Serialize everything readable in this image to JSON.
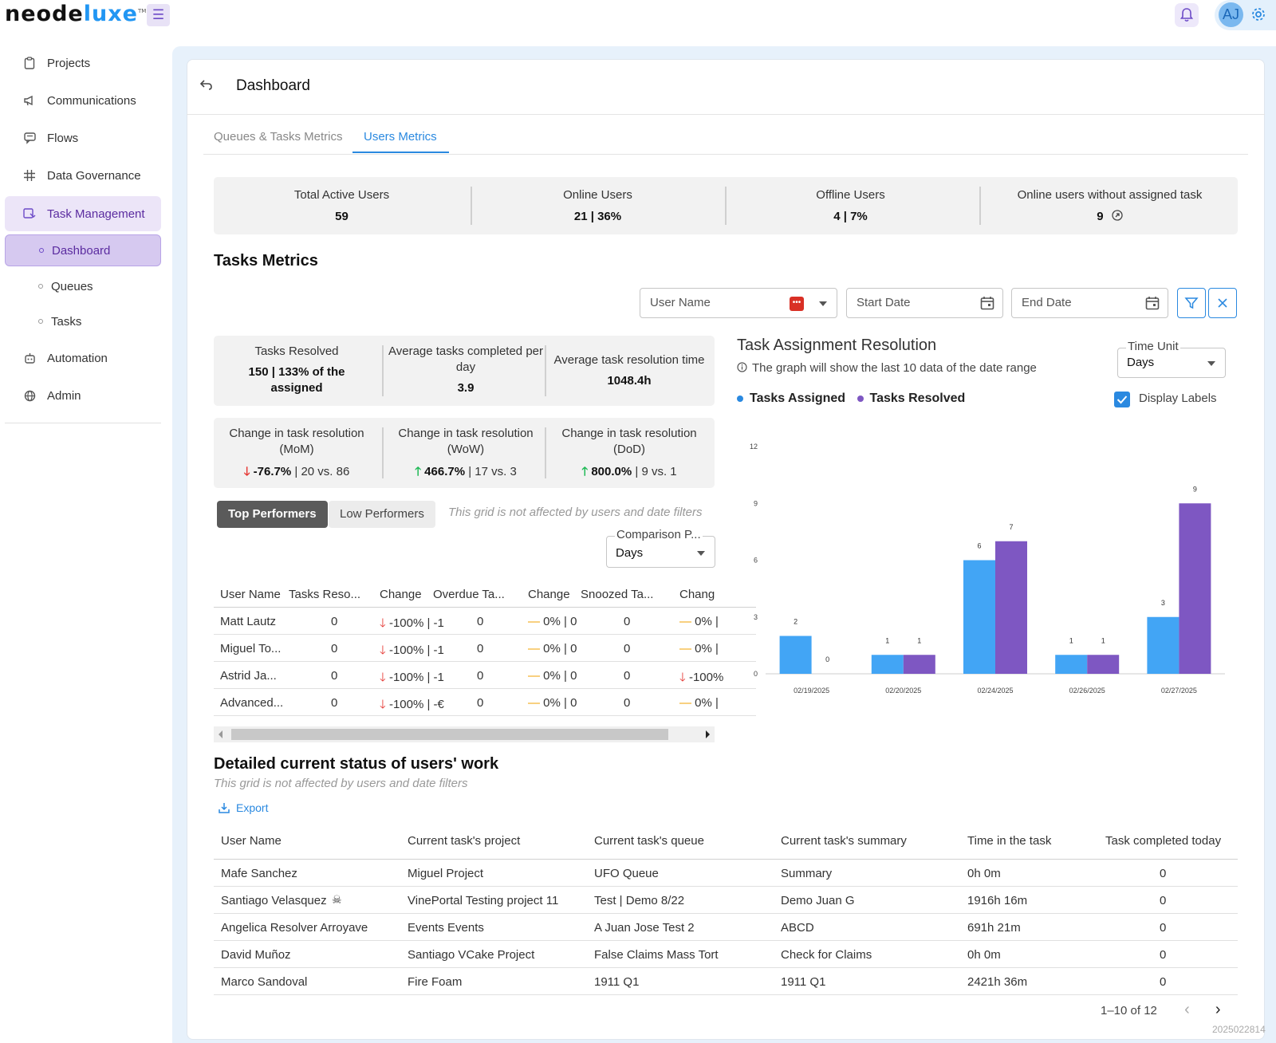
{
  "brand": {
    "logo_a": "neode",
    "logo_b": "luxe",
    "tm": "TM"
  },
  "topbar": {
    "avatar_initials": "AJ"
  },
  "sidebar": {
    "items": [
      {
        "label": "Projects",
        "icon": "clipboard-icon"
      },
      {
        "label": "Communications",
        "icon": "megaphone-icon"
      },
      {
        "label": "Flows",
        "icon": "message-icon"
      },
      {
        "label": "Data Governance",
        "icon": "grid-icon"
      },
      {
        "label": "Task Management",
        "icon": "task-icon"
      },
      {
        "label": "Automation",
        "icon": "robot-icon"
      },
      {
        "label": "Admin",
        "icon": "globe-icon"
      }
    ],
    "sub_items": [
      "Dashboard",
      "Queues",
      "Tasks"
    ]
  },
  "header": {
    "title": "Dashboard"
  },
  "tabs": [
    "Queues & Tasks Metrics",
    "Users Metrics"
  ],
  "summary": [
    {
      "label": "Total Active Users",
      "value": "59"
    },
    {
      "label": "Online Users",
      "value": "21 | 36%"
    },
    {
      "label": "Offline Users",
      "value": "4 | 7%"
    },
    {
      "label": "Online users without assigned task",
      "value": "9"
    }
  ],
  "tasks_metrics": {
    "title": "Tasks Metrics",
    "filters": {
      "user_name": "User Name",
      "start_date": "Start Date",
      "end_date": "End Date"
    },
    "box1": [
      {
        "label": "Tasks Resolved",
        "value_a": "150 | 133% of the",
        "value_b": "assigned"
      },
      {
        "label_a": "Average tasks completed per",
        "label_b": "day",
        "value": "3.9"
      },
      {
        "label": "Average task resolution time",
        "value": "1048.4h"
      }
    ],
    "box2": [
      {
        "label_a": "Change in task resolution",
        "label_b": "(MoM)",
        "pct": "-76.7%",
        "cmp": "20 vs. 86",
        "dir": "down"
      },
      {
        "label_a": "Change in task resolution",
        "label_b": "(WoW)",
        "pct": "466.7%",
        "cmp": "17 vs. 3",
        "dir": "up"
      },
      {
        "label_a": "Change in task resolution",
        "label_b": "(DoD)",
        "pct": "800.0%",
        "cmp": "9 vs. 1",
        "dir": "up"
      }
    ],
    "performers": {
      "top_label": "Top Performers",
      "low_label": "Low Performers",
      "note": "This grid is not affected by users and date filters",
      "comparison_label": "Comparison P...",
      "comparison_value": "Days",
      "columns": [
        "User Name",
        "Tasks Reso...",
        "Change",
        "Overdue Ta...",
        "Change",
        "Snoozed Ta...",
        "Chang"
      ],
      "rows": [
        [
          "Matt Lautz",
          "0",
          "-100% | -1",
          "0",
          "0% | 0",
          "0",
          "0% |"
        ],
        [
          "Miguel To...",
          "0",
          "-100% | -1",
          "0",
          "0% | 0",
          "0",
          "0% |"
        ],
        [
          "Astrid Ja...",
          "0",
          "-100% | -1",
          "0",
          "0% | 0",
          "0",
          "-100%"
        ],
        [
          "Advanced...",
          "0",
          "-100% | -€",
          "0",
          "0% | 0",
          "0",
          "0% |"
        ]
      ],
      "row_dirs": [
        [
          "down",
          "flat",
          "flat"
        ],
        [
          "down",
          "flat",
          "flat"
        ],
        [
          "down",
          "flat",
          "down"
        ],
        [
          "down",
          "flat",
          "flat"
        ]
      ]
    }
  },
  "chart_section": {
    "title": "Task Assignment Resolution",
    "note": "The graph will show the last 10 data of the date range",
    "time_unit_label": "Time Unit",
    "time_unit_value": "Days",
    "display_labels": "Display Labels",
    "colors": {
      "assigned": "#42a5f5",
      "resolved": "#7e57c2"
    }
  },
  "chart_data": {
    "type": "bar",
    "categories": [
      "02/19/2025",
      "02/20/2025",
      "02/24/2025",
      "02/26/2025",
      "02/27/2025"
    ],
    "series": [
      {
        "name": "Tasks Assigned",
        "values": [
          2,
          1,
          6,
          1,
          3
        ]
      },
      {
        "name": "Tasks Resolved",
        "values": [
          0,
          1,
          7,
          1,
          9
        ]
      }
    ],
    "yticks": [
      0,
      3,
      6,
      9,
      12
    ],
    "ylim": [
      0,
      12
    ],
    "data_labels": true,
    "legend": "top-left"
  },
  "detail": {
    "title": "Detailed current status of users' work",
    "note": "This grid is not affected by users and date filters",
    "export": "Export",
    "columns": [
      "User Name",
      "Current task's project",
      "Current task's queue",
      "Current task's summary",
      "Time in the task",
      "Task completed today"
    ],
    "rows": [
      [
        "Mafe Sanchez",
        "Miguel Project",
        "UFO Queue",
        "Summary",
        "0h 0m",
        "0"
      ],
      [
        "Santiago Velasquez",
        "VinePortal Testing project 11",
        "Test | Demo 8/22",
        "Demo Juan G",
        "1916h 16m",
        "0"
      ],
      [
        "Angelica Resolver Arroyave",
        "Events Events",
        "A Juan Jose Test 2",
        "ABCD",
        "691h 21m",
        "0"
      ],
      [
        "David Muñoz",
        "Santiago VCake Project",
        "False Claims Mass Tort",
        "Check for Claims",
        "0h 0m",
        "0"
      ],
      [
        "Marco Sandoval",
        "Fire Foam",
        "1911 Q1",
        "1911 Q1",
        "2421h 36m",
        "0"
      ]
    ],
    "pagination": "1–10 of 12"
  },
  "stamp": "2025022814"
}
